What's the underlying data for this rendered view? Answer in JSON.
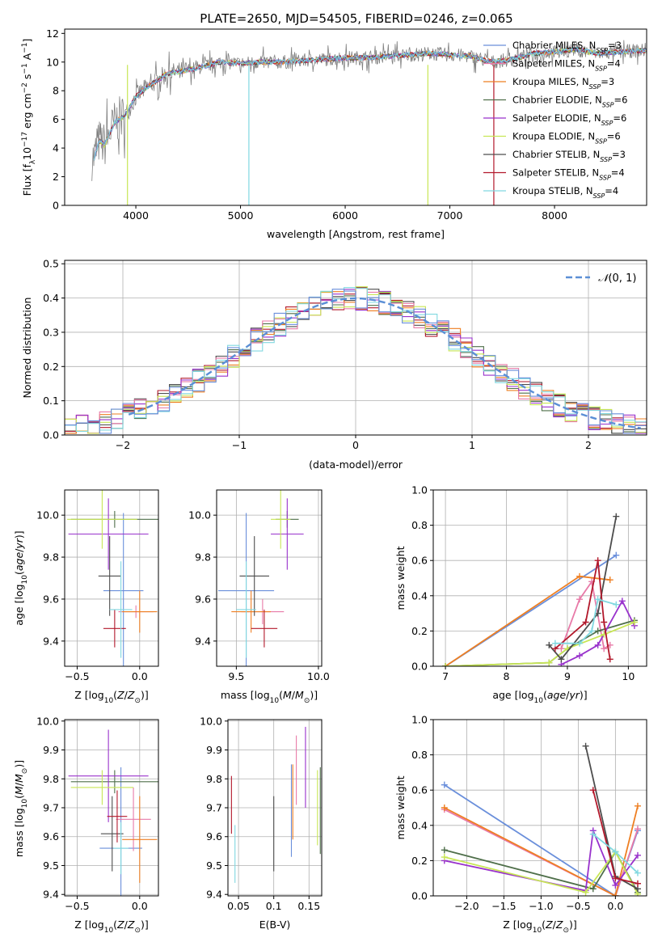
{
  "figure": {
    "title": "PLATE=2650, MJD=54505, FIBERID=0246, z=0.065"
  },
  "models": [
    {
      "name": "Chabrier MILES",
      "nssp": 3,
      "color": "#6a8fdb"
    },
    {
      "name": "Salpeter MILES",
      "nssp": 4,
      "color": "#e87aa8"
    },
    {
      "name": "Kroupa MILES",
      "nssp": 3,
      "color": "#ee7f22"
    },
    {
      "name": "Chabrier ELODIE",
      "nssp": 6,
      "color": "#4f6f4a"
    },
    {
      "name": "Salpeter ELODIE",
      "nssp": 6,
      "color": "#9932cc"
    },
    {
      "name": "Kroupa ELODIE",
      "nssp": 6,
      "color": "#c8e655"
    },
    {
      "name": "Chabrier STELIB",
      "nssp": 3,
      "color": "#4d4d4d"
    },
    {
      "name": "Salpeter STELIB",
      "nssp": 4,
      "color": "#b2182b"
    },
    {
      "name": "Kroupa STELIB",
      "nssp": 4,
      "color": "#80d8e0"
    }
  ],
  "chart_data": [
    {
      "id": "spectrum",
      "type": "line",
      "xlabel": "wavelength [Angstrom, rest frame]",
      "ylabel": "Flux [fλ10^-17 erg cm^-2 s^-1 A^-1]",
      "xlim": [
        3320,
        8880
      ],
      "ylim": [
        0,
        12.3
      ],
      "xticks": [
        4000,
        5000,
        6000,
        7000,
        8000
      ],
      "yticks": [
        0,
        2,
        4,
        6,
        8,
        10,
        12
      ],
      "data_color": "#808080",
      "spectrum_anchor_points": {
        "x": [
          3600,
          3650,
          3700,
          3800,
          3900,
          4000,
          4100,
          4200,
          4300,
          4400,
          4600,
          4800,
          5000,
          5200,
          5400,
          5600,
          5800,
          6000,
          6200,
          6400,
          6600,
          6800,
          7000,
          7200,
          7400,
          7600,
          7800,
          8000,
          8200,
          8400,
          8600,
          8800
        ],
        "y": [
          3.3,
          4.5,
          4.2,
          5.8,
          6.3,
          7.6,
          8.2,
          8.7,
          9.2,
          9.3,
          9.6,
          10.0,
          9.9,
          10.0,
          10.0,
          10.1,
          10.2,
          10.3,
          10.3,
          10.4,
          10.5,
          10.6,
          10.5,
          10.4,
          10.0,
          10.2,
          10.6,
          10.7,
          10.9,
          10.6,
          10.7,
          10.8
        ]
      }
    },
    {
      "id": "residual-histogram",
      "type": "histogram",
      "xlabel": "(data-model)/error",
      "ylabel": "Normed distribution",
      "xlim": [
        -2.5,
        2.5
      ],
      "ylim": [
        0,
        0.51
      ],
      "xticks": [
        -2,
        -1,
        0,
        1,
        2
      ],
      "yticks": [
        0.0,
        0.1,
        0.2,
        0.3,
        0.4,
        0.5
      ],
      "bin_width": 0.1,
      "reference_curve": "N(0,1)"
    },
    {
      "id": "age-vs-Z",
      "type": "errorbar",
      "xlabel": "Z [log10(Z/Z☉)]",
      "ylabel": "age  [log10(age/yr)]",
      "xlim": [
        -0.6,
        0.15
      ],
      "ylim": [
        9.28,
        10.12
      ],
      "xticks": [
        -0.5,
        0.0
      ],
      "yticks": [
        9.4,
        9.6,
        9.8,
        10.0
      ],
      "points": [
        {
          "model": 0,
          "x": -0.13,
          "y": 9.64,
          "xerr": 0.16,
          "yerr": 0.37
        },
        {
          "model": 1,
          "x": -0.03,
          "y": 9.54,
          "xerr": 0.14,
          "yerr": 0.03
        },
        {
          "model": 2,
          "x": 0.0,
          "y": 9.54,
          "xerr": 0.14,
          "yerr": 0.1
        },
        {
          "model": 3,
          "x": -0.2,
          "y": 9.98,
          "xerr": 0.35,
          "yerr": 0.04
        },
        {
          "model": 4,
          "x": -0.25,
          "y": 9.91,
          "xerr": 0.32,
          "yerr": 0.17
        },
        {
          "model": 5,
          "x": -0.3,
          "y": 9.98,
          "xerr": 0.28,
          "yerr": 0.14
        },
        {
          "model": 6,
          "x": -0.24,
          "y": 9.71,
          "xerr": 0.09,
          "yerr": 0.19
        },
        {
          "model": 7,
          "x": -0.2,
          "y": 9.46,
          "xerr": 0.09,
          "yerr": 0.09
        },
        {
          "model": 8,
          "x": -0.15,
          "y": 9.55,
          "xerr": 0.09,
          "yerr": 0.23
        }
      ]
    },
    {
      "id": "age-vs-mass",
      "type": "errorbar",
      "xlabel": "mass [log10(M/M☉)]",
      "ylabel": "",
      "xlim": [
        9.38,
        10.02
      ],
      "ylim": [
        9.28,
        10.12
      ],
      "xticks": [
        9.5,
        10.0
      ],
      "yticks": [
        9.4,
        9.6,
        9.8,
        10.0
      ],
      "points": [
        {
          "model": 0,
          "x": 9.56,
          "y": 9.64,
          "xerr": 0.17,
          "yerr": 0.37
        },
        {
          "model": 1,
          "x": 9.66,
          "y": 9.54,
          "xerr": 0.13,
          "yerr": 0.06
        },
        {
          "model": 2,
          "x": 9.59,
          "y": 9.54,
          "xerr": 0.12,
          "yerr": 0.1
        },
        {
          "model": 3,
          "x": 9.81,
          "y": 9.98,
          "xerr": 0.07,
          "yerr": 0.04
        },
        {
          "model": 4,
          "x": 9.81,
          "y": 9.91,
          "xerr": 0.1,
          "yerr": 0.17
        },
        {
          "model": 5,
          "x": 9.77,
          "y": 9.98,
          "xerr": 0.06,
          "yerr": 0.14
        },
        {
          "model": 6,
          "x": 9.61,
          "y": 9.71,
          "xerr": 0.09,
          "yerr": 0.19
        },
        {
          "model": 7,
          "x": 9.67,
          "y": 9.46,
          "xerr": 0.08,
          "yerr": 0.09
        },
        {
          "model": 8,
          "x": 9.56,
          "y": 9.55,
          "xerr": 0.06,
          "yerr": 0.23
        }
      ]
    },
    {
      "id": "mass-weight-vs-age",
      "type": "line",
      "xlabel": "age  [log10(age/yr)]",
      "ylabel": "mass weight",
      "xlim": [
        6.8,
        10.3
      ],
      "ylim": [
        0,
        1.0
      ],
      "xticks": [
        7,
        8,
        9,
        10
      ],
      "yticks": [
        0.0,
        0.2,
        0.4,
        0.6,
        0.8,
        1.0
      ],
      "series": [
        {
          "model": 0,
          "x": [
            7.0,
            9.8
          ],
          "y": [
            0.0,
            0.63
          ]
        },
        {
          "model": 1,
          "x": [
            8.9,
            9.2,
            9.4,
            9.6,
            9.7
          ],
          "y": [
            0.1,
            0.38,
            0.48,
            0.1,
            0.12
          ]
        },
        {
          "model": 2,
          "x": [
            7.0,
            9.2,
            9.7
          ],
          "y": [
            0.0,
            0.51,
            0.49
          ]
        },
        {
          "model": 3,
          "x": [
            7.0,
            8.7,
            9.0,
            9.5,
            10.1
          ],
          "y": [
            0.0,
            0.02,
            0.1,
            0.2,
            0.26
          ]
        },
        {
          "model": 4,
          "x": [
            8.9,
            9.2,
            9.5,
            9.9,
            10.1
          ],
          "y": [
            0.01,
            0.06,
            0.12,
            0.37,
            0.23
          ]
        },
        {
          "model": 5,
          "x": [
            7.0,
            8.7,
            9.0,
            9.6,
            10.1
          ],
          "y": [
            0.0,
            0.02,
            0.1,
            0.18,
            0.25
          ]
        },
        {
          "model": 6,
          "x": [
            8.7,
            8.9,
            9.5,
            9.8
          ],
          "y": [
            0.12,
            0.04,
            0.3,
            0.85
          ]
        },
        {
          "model": 7,
          "x": [
            8.8,
            9.3,
            9.5,
            9.6,
            9.7
          ],
          "y": [
            0.1,
            0.25,
            0.6,
            0.25,
            0.04
          ]
        },
        {
          "model": 8,
          "x": [
            8.8,
            9.2,
            9.4,
            9.5,
            9.8
          ],
          "y": [
            0.13,
            0.13,
            0.2,
            0.38,
            0.35
          ]
        }
      ]
    },
    {
      "id": "mass-vs-Z",
      "type": "errorbar",
      "xlabel": "Z [log10(Z/Z☉)]",
      "ylabel": "mass [log10(M/M☉)]",
      "xlim": [
        -0.6,
        0.15
      ],
      "ylim": [
        9.395,
        10.005
      ],
      "xticks": [
        -0.5,
        0.0
      ],
      "yticks": [
        9.4,
        9.5,
        9.6,
        9.7,
        9.8,
        9.9,
        10.0
      ],
      "points": [
        {
          "model": 0,
          "x": -0.15,
          "y": 9.56,
          "xerr": 0.17,
          "yerr": 0.28
        },
        {
          "model": 1,
          "x": -0.05,
          "y": 9.66,
          "xerr": 0.14,
          "yerr": 0.11
        },
        {
          "model": 2,
          "x": 0.0,
          "y": 9.59,
          "xerr": 0.14,
          "yerr": 0.15
        },
        {
          "model": 3,
          "x": -0.2,
          "y": 9.79,
          "xerr": 0.35,
          "yerr": 0.04
        },
        {
          "model": 4,
          "x": -0.25,
          "y": 9.81,
          "xerr": 0.32,
          "yerr": 0.16
        },
        {
          "model": 5,
          "x": -0.3,
          "y": 9.77,
          "xerr": 0.25,
          "yerr": 0.06
        },
        {
          "model": 6,
          "x": -0.22,
          "y": 9.61,
          "xerr": 0.09,
          "yerr": 0.13
        },
        {
          "model": 7,
          "x": -0.18,
          "y": 9.67,
          "xerr": 0.08,
          "yerr": 0.09
        },
        {
          "model": 8,
          "x": -0.15,
          "y": 9.56,
          "xerr": 0.06,
          "yerr": 0.09
        }
      ]
    },
    {
      "id": "mass-vs-EBV",
      "type": "errorbar",
      "xlabel": "E(B-V)",
      "ylabel": "",
      "xlim": [
        0.035,
        0.168
      ],
      "ylim": [
        9.395,
        10.005
      ],
      "xticks": [
        0.05,
        0.1,
        0.15
      ],
      "yticks": [
        9.4,
        9.5,
        9.6,
        9.7,
        9.8,
        9.9,
        10.0
      ],
      "points": [
        {
          "model": 0,
          "x": 0.125,
          "y": 9.69,
          "xerr": 0.0,
          "yerr": 0.16
        },
        {
          "model": 1,
          "x": 0.132,
          "y": 9.83,
          "xerr": 0.0,
          "yerr": 0.12
        },
        {
          "model": 2,
          "x": 0.127,
          "y": 9.72,
          "xerr": 0.0,
          "yerr": 0.13
        },
        {
          "model": 3,
          "x": 0.166,
          "y": 9.69,
          "xerr": 0.0,
          "yerr": 0.15
        },
        {
          "model": 4,
          "x": 0.145,
          "y": 9.84,
          "xerr": 0.0,
          "yerr": 0.14
        },
        {
          "model": 5,
          "x": 0.162,
          "y": 9.7,
          "xerr": 0.0,
          "yerr": 0.13
        },
        {
          "model": 6,
          "x": 0.1,
          "y": 9.61,
          "xerr": 0.0,
          "yerr": 0.13
        },
        {
          "model": 7,
          "x": 0.04,
          "y": 9.71,
          "xerr": 0.0,
          "yerr": 0.1
        },
        {
          "model": 8,
          "x": 0.045,
          "y": 9.54,
          "xerr": 0.0,
          "yerr": 0.1
        }
      ]
    },
    {
      "id": "mass-weight-vs-Z",
      "type": "line",
      "xlabel": "Z [log10(Z/Z☉)]",
      "ylabel": "mass weight",
      "xlim": [
        -2.45,
        0.42
      ],
      "ylim": [
        0,
        1.0
      ],
      "xticks": [
        -2.0,
        -1.5,
        -1.0,
        -0.5,
        0.0
      ],
      "yticks": [
        0.0,
        0.2,
        0.4,
        0.6,
        0.8,
        1.0
      ],
      "series": [
        {
          "model": 0,
          "x": [
            -2.3,
            0.0,
            0.3
          ],
          "y": [
            0.63,
            0.0,
            0.37
          ]
        },
        {
          "model": 1,
          "x": [
            -2.3,
            0.0,
            0.3
          ],
          "y": [
            0.49,
            0.0,
            0.38
          ]
        },
        {
          "model": 2,
          "x": [
            -2.3,
            0.0,
            0.3
          ],
          "y": [
            0.5,
            0.0,
            0.51
          ]
        },
        {
          "model": 3,
          "x": [
            -2.3,
            -0.3,
            0.0,
            0.3
          ],
          "y": [
            0.26,
            0.04,
            0.25,
            0.02
          ]
        },
        {
          "model": 4,
          "x": [
            -2.3,
            -0.4,
            -0.3,
            0.0,
            0.3
          ],
          "y": [
            0.2,
            0.03,
            0.37,
            0.06,
            0.23
          ]
        },
        {
          "model": 5,
          "x": [
            -2.3,
            -0.4,
            0.0,
            0.3
          ],
          "y": [
            0.22,
            0.02,
            0.25,
            0.01
          ]
        },
        {
          "model": 6,
          "x": [
            -0.4,
            0.0,
            0.3
          ],
          "y": [
            0.85,
            0.11,
            0.04
          ]
        },
        {
          "model": 7,
          "x": [
            -0.3,
            0.0,
            0.3
          ],
          "y": [
            0.6,
            0.1,
            0.07
          ]
        },
        {
          "model": 8,
          "x": [
            -0.3,
            0.0,
            0.3
          ],
          "y": [
            0.35,
            0.25,
            0.13
          ]
        }
      ]
    }
  ]
}
